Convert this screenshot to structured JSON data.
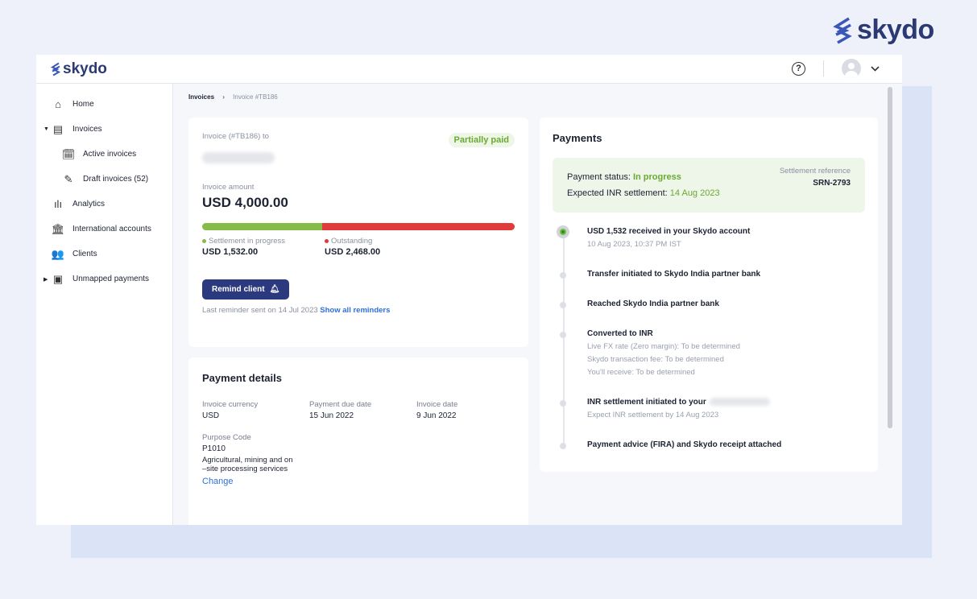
{
  "brand": {
    "name": "skydo",
    "colors": {
      "navy": "#2b3a73",
      "green": "#6aaa2f",
      "red": "#e03a3a",
      "link": "#2e6fdc"
    }
  },
  "header": {
    "help_icon": "?"
  },
  "sidebar": {
    "items": [
      {
        "label": "Home",
        "icon": "home-icon"
      },
      {
        "label": "Invoices",
        "icon": "invoice-icon"
      },
      {
        "label": "Active invoices",
        "icon": "active-invoice-icon"
      },
      {
        "label": "Draft invoices (52)",
        "icon": "draft-invoice-icon"
      },
      {
        "label": "Analytics",
        "icon": "analytics-icon"
      },
      {
        "label": "International accounts",
        "icon": "bank-icon"
      },
      {
        "label": "Clients",
        "icon": "clients-icon"
      },
      {
        "label": "Unmapped payments",
        "icon": "cash-icon"
      }
    ]
  },
  "breadcrumb": {
    "parent": "Invoices",
    "current": "Invoice #TB186"
  },
  "invoice": {
    "to_label": "Invoice (#TB186) to",
    "status": "Partially paid",
    "amount_label": "Invoice amount",
    "amount": "USD 4,000.00",
    "settled_fraction": 0.383,
    "settlement_label": "Settlement in progress",
    "settlement_value": "USD 1,532.00",
    "outstanding_label": "Outstanding",
    "outstanding_value": "USD 2,468.00",
    "remind_button": "Remind client",
    "last_reminder": "Last reminder sent on 14 Jul 2023",
    "show_reminders": "Show all reminders"
  },
  "details": {
    "title": "Payment details",
    "fields": [
      {
        "label": "Invoice currency",
        "value": "USD"
      },
      {
        "label": "Payment due date",
        "value": "15 Jun 2022"
      },
      {
        "label": "Invoice date",
        "value": "9 Jun 2022"
      }
    ],
    "purpose_label": "Purpose Code",
    "purpose_code": "P1010",
    "purpose_desc": "Agricultural, mining and on –site processing services",
    "change": "Change"
  },
  "payments": {
    "title": "Payments",
    "status_label": "Payment status:",
    "status": "In progress",
    "expected_label": "Expected INR settlement:",
    "expected": "14 Aug 2023",
    "ref_label": "Settlement reference",
    "ref": "SRN-2793",
    "steps": [
      {
        "title": "USD 1,532 received in your Skydo account",
        "sub": [
          "10 Aug 2023, 10:37 PM IST"
        ]
      },
      {
        "title": "Transfer initiated to Skydo India partner bank",
        "sub": []
      },
      {
        "title": "Reached Skydo India partner bank",
        "sub": []
      },
      {
        "title": "Converted to INR",
        "sub": [
          "Live FX rate (Zero margin): To be determined",
          "Skydo transaction fee: To be determined",
          "You'll receive: To be determined"
        ]
      },
      {
        "title": "INR settlement initiated to your",
        "sub": [
          "Expect INR settlement by 14 Aug 2023"
        ]
      },
      {
        "title": "Payment advice (FIRA) and Skydo receipt attached",
        "sub": []
      }
    ]
  }
}
